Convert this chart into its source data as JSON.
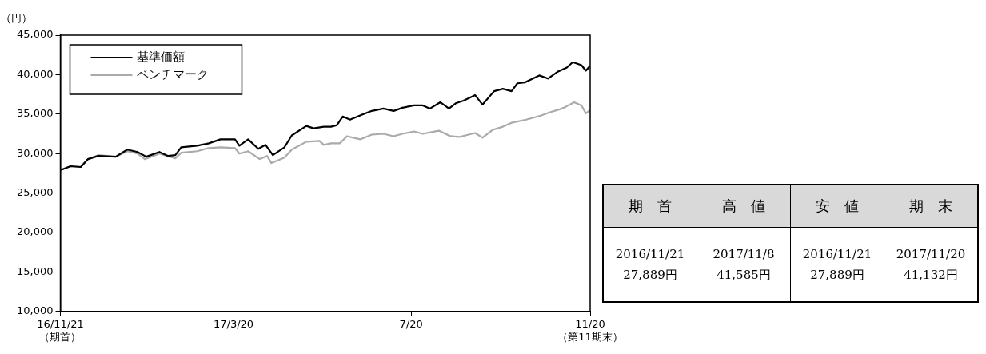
{
  "chart_data": {
    "type": "line",
    "ylabel": "（円）",
    "xlim": [
      "2016-11-21",
      "2017-11-20"
    ],
    "xticks": [
      {
        "value": "2016-11-21",
        "label": "16/11/21\n（期首）"
      },
      {
        "value": "2017-03-20",
        "label": "17/3/20"
      },
      {
        "value": "2017-07-20",
        "label": "7/20"
      },
      {
        "value": "2017-11-20",
        "label": "11/20\n（第11期末）"
      }
    ],
    "ylim": [
      10000,
      45000
    ],
    "yticks": [
      {
        "value": 10000,
        "label": "10,000"
      },
      {
        "value": 15000,
        "label": "15,000"
      },
      {
        "value": 20000,
        "label": "20,000"
      },
      {
        "value": 25000,
        "label": "25,000"
      },
      {
        "value": 30000,
        "label": "30,000"
      },
      {
        "value": 35000,
        "label": "35,000"
      },
      {
        "value": 40000,
        "label": "40,000"
      },
      {
        "value": 45000,
        "label": "45,000"
      }
    ],
    "grid": false,
    "legend": "top left",
    "series": [
      {
        "name": "基準価額",
        "color": "#000000",
        "x": [
          "2016-11-21",
          "2016-11-28",
          "2016-12-05",
          "2016-12-10",
          "2016-12-17",
          "2016-12-29",
          "2017-01-06",
          "2017-01-13",
          "2017-01-19",
          "2017-01-28",
          "2017-02-03",
          "2017-02-08",
          "2017-02-12",
          "2017-02-23",
          "2017-03-03",
          "2017-03-11",
          "2017-03-21",
          "2017-03-24",
          "2017-03-30",
          "2017-04-06",
          "2017-04-11",
          "2017-04-16",
          "2017-04-24",
          "2017-04-29",
          "2017-05-09",
          "2017-05-14",
          "2017-05-21",
          "2017-05-26",
          "2017-05-30",
          "2017-06-03",
          "2017-06-08",
          "2017-06-16",
          "2017-06-23",
          "2017-07-01",
          "2017-07-08",
          "2017-07-14",
          "2017-07-22",
          "2017-07-28",
          "2017-08-02",
          "2017-08-09",
          "2017-08-15",
          "2017-08-20",
          "2017-08-25",
          "2017-09-02",
          "2017-09-07",
          "2017-09-15",
          "2017-09-21",
          "2017-09-27",
          "2017-10-01",
          "2017-10-06",
          "2017-10-16",
          "2017-10-22",
          "2017-10-29",
          "2017-11-04",
          "2017-11-08",
          "2017-11-14",
          "2017-11-17",
          "2017-11-20"
        ],
        "values": [
          27889,
          28400,
          28300,
          29300,
          29700,
          29600,
          30500,
          30200,
          29600,
          30200,
          29700,
          29800,
          30800,
          31000,
          31300,
          31800,
          31800,
          31000,
          31800,
          30600,
          31100,
          29800,
          30800,
          32300,
          33500,
          33200,
          33400,
          33400,
          33600,
          34700,
          34300,
          34900,
          35400,
          35700,
          35400,
          35800,
          36100,
          36100,
          35700,
          36500,
          35700,
          36400,
          36700,
          37400,
          36200,
          37900,
          38200,
          37900,
          38900,
          39000,
          39900,
          39500,
          40400,
          40900,
          41585,
          41200,
          40500,
          41132
        ]
      },
      {
        "name": "ベンチマーク",
        "color": "#aaaaaa",
        "x": [
          "2016-11-21",
          "2016-11-28",
          "2016-12-05",
          "2016-12-10",
          "2016-12-17",
          "2016-12-29",
          "2017-01-06",
          "2017-01-13",
          "2017-01-18",
          "2017-01-28",
          "2017-02-08",
          "2017-02-12",
          "2017-02-23",
          "2017-03-03",
          "2017-03-11",
          "2017-03-21",
          "2017-03-24",
          "2017-03-30",
          "2017-04-07",
          "2017-04-12",
          "2017-04-15",
          "2017-04-24",
          "2017-04-29",
          "2017-05-09",
          "2017-05-18",
          "2017-05-21",
          "2017-05-26",
          "2017-06-01",
          "2017-06-06",
          "2017-06-15",
          "2017-06-23",
          "2017-07-01",
          "2017-07-08",
          "2017-07-14",
          "2017-07-22",
          "2017-07-28",
          "2017-08-08",
          "2017-08-16",
          "2017-08-22",
          "2017-09-02",
          "2017-09-07",
          "2017-09-14",
          "2017-09-21",
          "2017-09-27",
          "2017-10-07",
          "2017-10-17",
          "2017-10-23",
          "2017-10-30",
          "2017-11-03",
          "2017-11-09",
          "2017-11-14",
          "2017-11-17",
          "2017-11-20"
        ],
        "values": [
          27900,
          28400,
          28300,
          29300,
          29800,
          29600,
          30300,
          30000,
          29300,
          30000,
          29400,
          30100,
          30300,
          30700,
          30800,
          30700,
          30000,
          30300,
          29300,
          29700,
          28800,
          29500,
          30500,
          31500,
          31600,
          31100,
          31300,
          31300,
          32200,
          31800,
          32400,
          32500,
          32200,
          32500,
          32800,
          32500,
          32900,
          32200,
          32100,
          32600,
          32000,
          33000,
          33400,
          33900,
          34300,
          34800,
          35200,
          35600,
          35900,
          36500,
          36100,
          35100,
          35500
        ]
      }
    ],
    "annotations": [
      "期　首",
      "高　値",
      "安　値",
      "期　末",
      "2016/11/21",
      "2017/11/8",
      "2016/11/21",
      "2017/11/20",
      "27,889円",
      "41,585円",
      "27,889円",
      "41,132円"
    ]
  }
}
